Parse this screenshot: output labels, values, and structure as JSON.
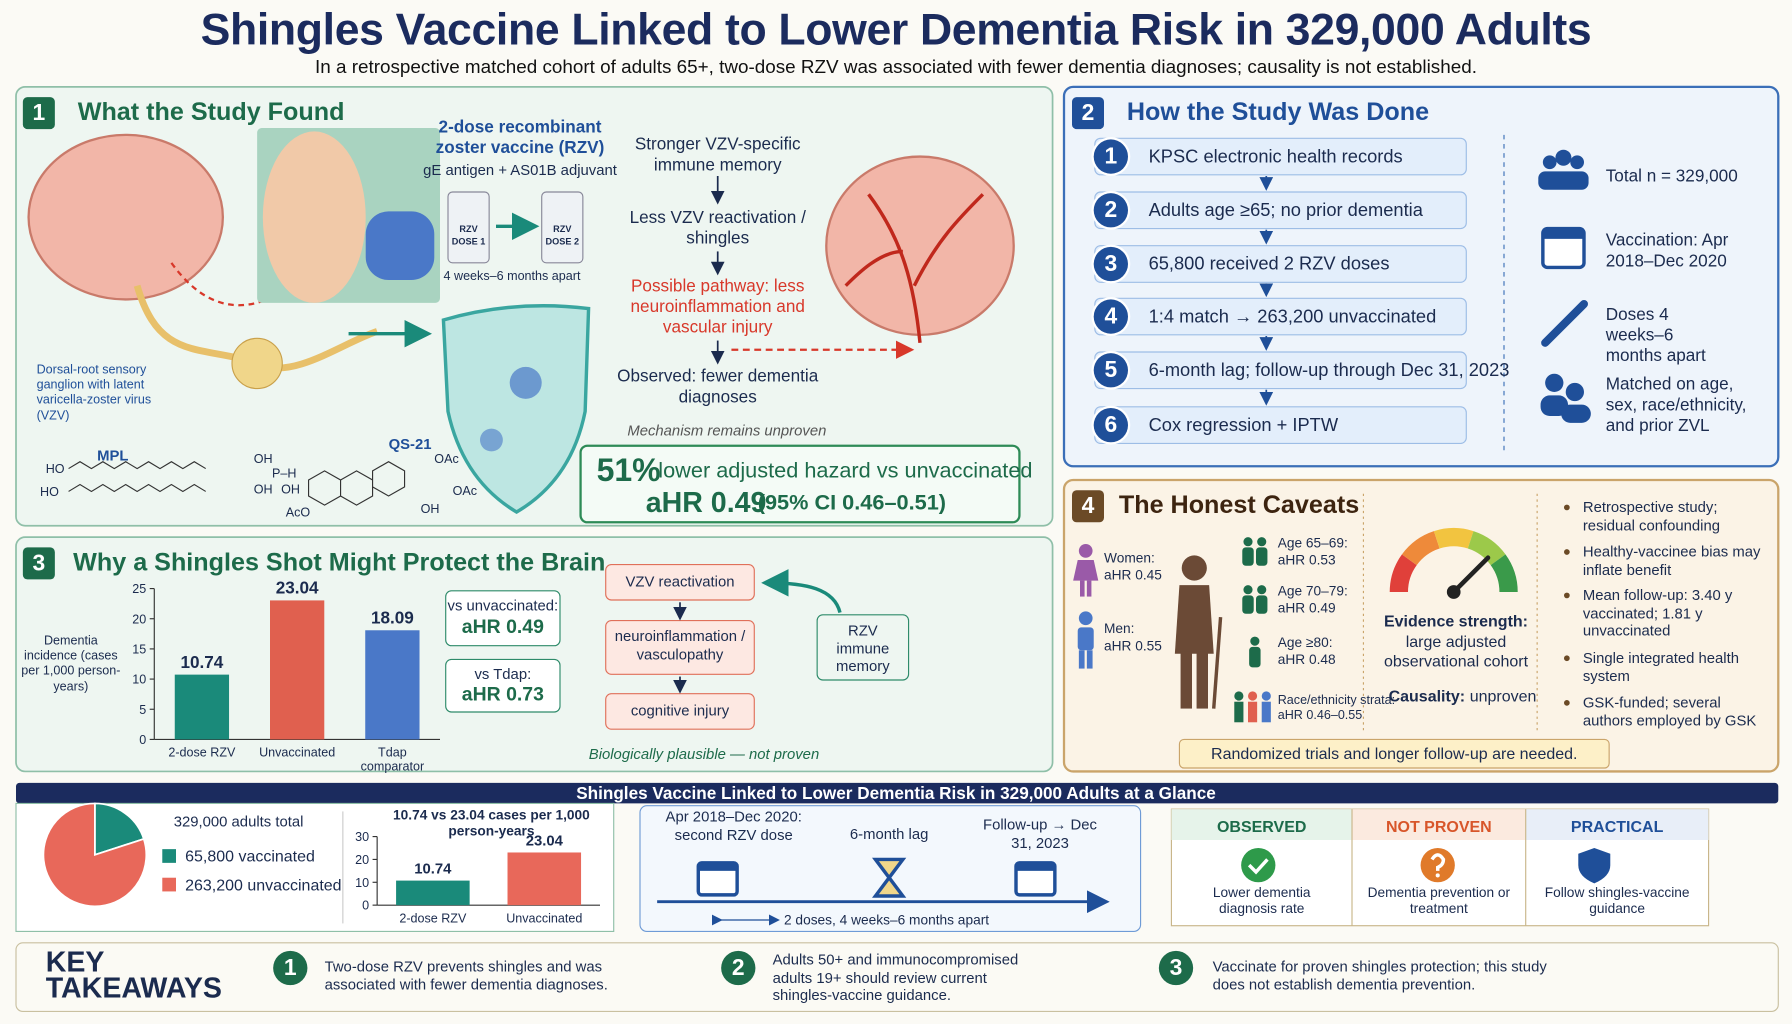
{
  "header": {
    "title": "Shingles Vaccine Linked to Lower Dementia Risk in 329,000 Adults",
    "subtitle": "In a retrospective matched cohort of adults 65+, two-dose RZV was associated with fewer dementia diagnoses; causality is not established."
  },
  "found": {
    "number": "1",
    "title": "What the Study Found",
    "vaccine": "2-dose recombinant zoster vaccine (RZV)",
    "antigen": "gE antigen + AS01B adjuvant",
    "vial_name": "RZV",
    "dose1": "DOSE 1",
    "dose2": "DOSE 2",
    "interval": "4 weeks–6 months apart",
    "ganglion": "Dorsal-root sensory ganglion with latent varicella-zoster virus (VZV)",
    "mpl": "MPL",
    "qs21": "QS-21",
    "chem_labels": [
      "HO",
      "HO",
      "OH",
      "P–H",
      "OH",
      "OH",
      "OAc",
      "OAc",
      "AcO",
      "OH"
    ],
    "chain": [
      "Stronger VZV-specific immune memory",
      "Less VZV reactivation / shingles",
      "Possible pathway: less neuroinflammation and vascular injury",
      "Observed: fewer dementia diagnoses"
    ],
    "mechanism": "Mechanism remains unproven",
    "result_pct": "51%",
    "result_rest": "lower adjusted hazard vs unvaccinated",
    "ahr": "aHR 0.49",
    "ci": "(95% CI 0.46–0.51)"
  },
  "how": {
    "number": "2",
    "title": "How the Study Was Done",
    "steps": [
      {
        "n": "1",
        "text": "KPSC electronic health records"
      },
      {
        "n": "2",
        "text": "Adults age ≥65; no prior dementia"
      },
      {
        "n": "3",
        "text": "65,800 received 2 RZV doses"
      },
      {
        "n": "4",
        "text": "1:4 match → 263,200 unvaccinated"
      },
      {
        "n": "5",
        "text": "6-month lag; follow-up through Dec 31, 2023"
      },
      {
        "n": "6",
        "text": "Cox regression + IPTW"
      }
    ],
    "facts": [
      "Total n = 329,000",
      "Vaccination: Apr 2018–Dec 2020",
      "Doses 4 weeks–6 months apart",
      "Matched on age, sex, race/ethnicity, and prior ZVL"
    ]
  },
  "why": {
    "number": "3",
    "title": "Why a Shingles Shot Might Protect the Brain",
    "comparisons": [
      {
        "label": "vs unvaccinated:",
        "ahr": "aHR 0.49"
      },
      {
        "label": "vs Tdap:",
        "ahr": "aHR 0.73"
      }
    ],
    "flow": [
      "VZV reactivation",
      "neuroinflammation / vasculopathy",
      "cognitive injury"
    ],
    "memory": "RZV immune memory",
    "note": "Biologically plausible — not proven"
  },
  "caveats": {
    "number": "4",
    "title": "The Honest Caveats",
    "women": {
      "label": "Women:",
      "ahr": "aHR 0.45"
    },
    "men": {
      "label": "Men:",
      "ahr": "aHR 0.55"
    },
    "ages": [
      {
        "label": "Age 65–69:",
        "ahr": "aHR 0.53"
      },
      {
        "label": "Age 70–79:",
        "ahr": "aHR 0.49"
      },
      {
        "label": "Age ≥80:",
        "ahr": "aHR 0.48"
      }
    ],
    "race": "Race/ethnicity strata: aHR 0.46–0.55",
    "evidence_label": "Evidence strength:",
    "evidence_text": "large adjusted observational cohort",
    "causality_label": "Causality:",
    "causality": "unproven",
    "bullets": [
      "Retrospective study; residual confounding",
      "Healthy-vaccinee bias may inflate benefit",
      "Mean follow-up: 3.40 y vaccinated; 1.81 y unvaccinated",
      "Single integrated health system",
      "GSK-funded; several authors employed by GSK"
    ],
    "footer": "Randomized trials and longer follow-up are needed."
  },
  "glance": {
    "title": "Shingles Vaccine Linked to Lower Dementia Risk in 329,000 Adults at a Glance",
    "timeline": [
      "Apr 2018–Dec 2020: second RZV dose",
      "6-month lag",
      "Follow-up → Dec 31, 2023"
    ],
    "timeline_note": "2 doses, 4 weeks–6 months apart",
    "panels": [
      {
        "head": "OBSERVED",
        "text": "Lower dementia diagnosis rate"
      },
      {
        "head": "NOT PROVEN",
        "text": "Dementia prevention or treatment"
      },
      {
        "head": "PRACTICAL",
        "text": "Follow shingles-vaccine guidance"
      }
    ]
  },
  "takeaways": {
    "title": "KEY TAKEAWAYS",
    "items": [
      {
        "n": "1",
        "text": "Two-dose RZV prevents shingles and was associated with fewer dementia diagnoses."
      },
      {
        "n": "2",
        "text": "Adults 50+ and immunocompromised adults 19+ should review current shingles-vaccine guidance."
      },
      {
        "n": "3",
        "text": "Vaccinate for proven shingles protection; this study does not establish dementia prevention."
      }
    ]
  },
  "chart_data": [
    {
      "type": "bar",
      "y_label": "Dementia incidence (cases per 1,000 person-years)",
      "categories": [
        "2-dose RZV",
        "Unvaccinated",
        "Tdap comparator"
      ],
      "values": [
        10.74,
        23.04,
        18.09
      ],
      "colors": [
        "#1a8a7a",
        "#e0604f",
        "#4a78c8"
      ],
      "ylim": [
        0,
        25
      ],
      "yticks": [
        0,
        5,
        10,
        15,
        20,
        25
      ]
    },
    {
      "type": "pie",
      "title": "329,000 adults total",
      "categories": [
        "65,800 vaccinated",
        "263,200 unvaccinated"
      ],
      "values": [
        65800,
        263200
      ],
      "colors": [
        "#1a8a7a",
        "#e8685a"
      ]
    },
    {
      "type": "bar",
      "title": "10.74 vs 23.04 cases per 1,000 person-years",
      "categories": [
        "2-dose RZV",
        "Unvaccinated"
      ],
      "values": [
        10.74,
        23.04
      ],
      "colors": [
        "#1a8a7a",
        "#e8685a"
      ],
      "ylim": [
        0,
        30
      ],
      "yticks": [
        0,
        10,
        20,
        30
      ]
    }
  ]
}
